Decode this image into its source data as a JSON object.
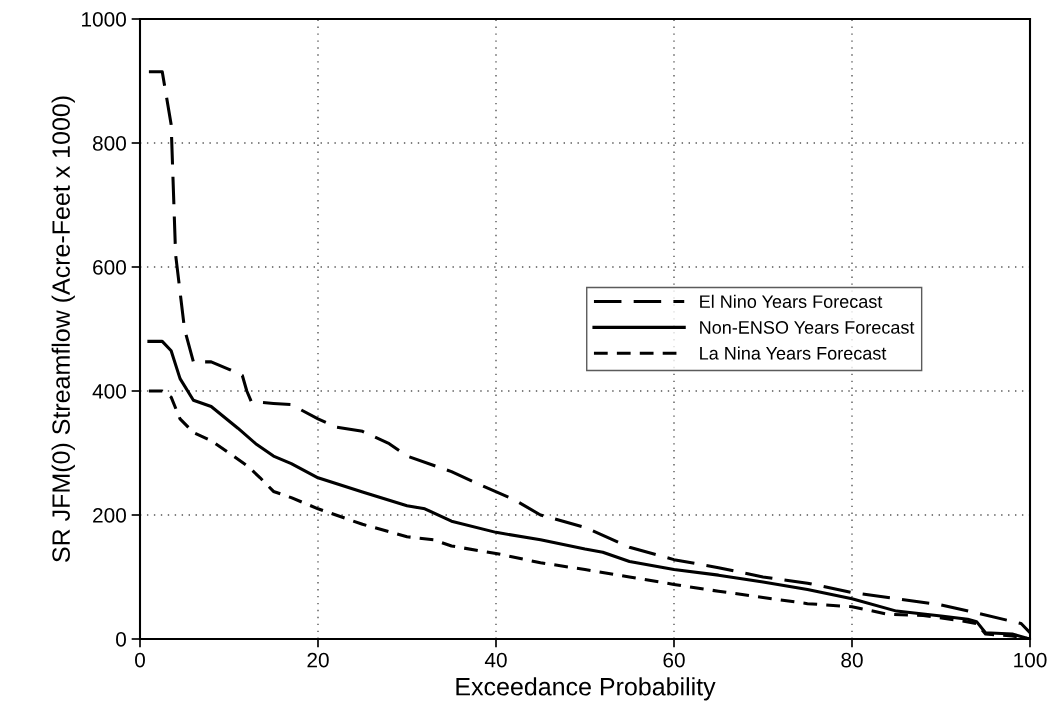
{
  "chart_data": {
    "type": "line",
    "xlabel": "Exceedance Probability",
    "ylabel": "SR JFM(0) Streamflow (Acre-Feet x 1000)",
    "xlim": [
      0,
      100
    ],
    "ylim": [
      0,
      1000
    ],
    "xticks": [
      0,
      20,
      40,
      60,
      80,
      100
    ],
    "yticks": [
      0,
      200,
      400,
      600,
      800,
      1000
    ],
    "grid": true,
    "legend": "right",
    "marker": "none",
    "series": [
      {
        "name": "El Nino Years Forecast",
        "color": "#000000",
        "line_style": "dashed",
        "x": [
          1,
          2.5,
          3.5,
          4,
          5,
          6,
          8,
          10,
          11.5,
          12,
          12.5,
          15,
          17,
          20,
          22,
          25,
          28,
          30,
          35,
          38,
          42,
          45,
          50,
          55,
          60,
          65,
          70,
          75,
          80,
          85,
          90,
          94,
          99,
          100
        ],
        "values": [
          915,
          915,
          830,
          620,
          500,
          447,
          447,
          435,
          425,
          400,
          383,
          380,
          378,
          355,
          342,
          335,
          315,
          295,
          270,
          250,
          225,
          200,
          180,
          148,
          128,
          115,
          100,
          90,
          75,
          65,
          55,
          42,
          25,
          10
        ]
      },
      {
        "name": "Non-ENSO Years Forecast",
        "color": "#000000",
        "line_style": "solid",
        "x": [
          1,
          2.5,
          3.5,
          4.5,
          6,
          8,
          11,
          13,
          15,
          17,
          20,
          25,
          30,
          32,
          35,
          40,
          45,
          50,
          52,
          55,
          60,
          65,
          70,
          75,
          80,
          85,
          90,
          93,
          94,
          95,
          98,
          100
        ],
        "values": [
          480,
          480,
          465,
          420,
          385,
          375,
          340,
          315,
          295,
          283,
          260,
          237,
          215,
          210,
          190,
          172,
          160,
          145,
          140,
          125,
          112,
          103,
          92,
          80,
          65,
          45,
          37,
          32,
          28,
          10,
          8,
          0
        ]
      },
      {
        "name": "La Nina Years Forecast",
        "color": "#000000",
        "line_style": "dashed",
        "x": [
          1,
          2.5,
          3.5,
          4.5,
          6,
          8,
          10,
          12,
          13.5,
          15,
          17,
          20,
          25,
          30,
          33,
          35,
          40,
          45,
          50,
          55,
          60,
          65,
          70,
          75,
          80,
          84,
          88,
          92,
          94,
          95,
          98,
          100
        ],
        "values": [
          400,
          400,
          390,
          355,
          333,
          320,
          300,
          280,
          260,
          238,
          228,
          210,
          185,
          165,
          160,
          150,
          138,
          123,
          112,
          100,
          88,
          77,
          67,
          57,
          52,
          40,
          38,
          30,
          25,
          8,
          5,
          0
        ]
      }
    ]
  }
}
